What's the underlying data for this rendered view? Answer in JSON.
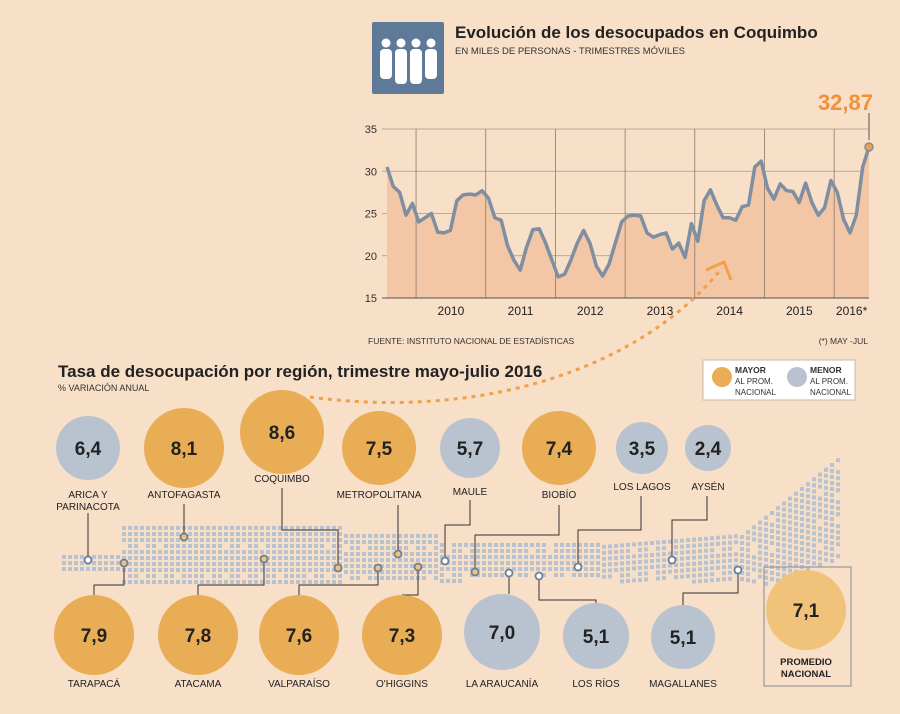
{
  "header": {
    "title": "Evolución de los desocupados en Coquimbo",
    "subtitle": "EN MILES DE PERSONAS - TRIMESTRES MÓVILES",
    "icon": "people-group-icon"
  },
  "colors": {
    "background": "#f7dfc8",
    "mayor": "#e8ad55",
    "menor": "#b9c3cf",
    "line": "#7f8ea0",
    "area": "#f3c7a6",
    "highlight": "#f0923a",
    "promedio": "#f1c27a"
  },
  "chart_data": {
    "type": "area",
    "title": "Evolución de los desocupados en Coquimbo",
    "subtitle": "EN MILES DE PERSONAS - TRIMESTRES MÓVILES",
    "ylim": [
      15,
      35
    ],
    "yticks": [
      "35",
      "30",
      "25",
      "20",
      "15"
    ],
    "year_labels": [
      "2010",
      "2011",
      "2012",
      "2013",
      "2014",
      "2015",
      "2016*"
    ],
    "year_start": 2009.583,
    "year_end": 2016.5,
    "last_value_label": "32,87",
    "source": "FUENTE: INSTITUTO NACIONAL DE ESTADÍSTICAS",
    "note": "(*) MAY -JUL",
    "values": [
      30.5,
      28.2,
      27.5,
      24.8,
      26.2,
      24.0,
      24.5,
      25.0,
      22.8,
      22.7,
      23.0,
      26.5,
      27.2,
      27.3,
      27.2,
      27.7,
      26.8,
      24.5,
      24.2,
      21.2,
      19.5,
      18.3,
      21.0,
      23.1,
      23.2,
      21.5,
      19.5,
      17.5,
      17.8,
      19.5,
      21.5,
      23.0,
      21.5,
      18.8,
      17.6,
      19.0,
      21.5,
      24.0,
      24.7,
      24.8,
      24.7,
      22.7,
      22.2,
      22.5,
      22.7,
      20.8,
      21.5,
      19.8,
      23.8,
      21.7,
      26.5,
      27.8,
      26.0,
      24.5,
      24.5,
      24.2,
      25.8,
      26.0,
      30.5,
      31.2,
      28.0,
      26.7,
      28.5,
      27.7,
      27.6,
      26.3,
      28.6,
      26.3,
      24.8,
      25.7,
      28.9,
      27.5,
      24.3,
      22.7,
      24.8,
      30.5,
      32.87
    ]
  },
  "section": {
    "title": "Tasa de desocupación por región, trimestre mayo-julio 2016",
    "subtitle": "% VARIACIÓN ANUAL"
  },
  "legend": {
    "mayor_title": "MAYOR",
    "mayor_sub1": "AL PROM.",
    "mayor_sub2": "NACIONAL",
    "menor_title": "MENOR",
    "menor_sub1": "AL PROM.",
    "menor_sub2": "NACIONAL"
  },
  "regions_top": [
    {
      "name": "ARICA Y",
      "name2": "PARINACOTA",
      "value": "6,4",
      "status": "menor"
    },
    {
      "name": "ANTOFAGASTA",
      "name2": "",
      "value": "8,1",
      "status": "mayor"
    },
    {
      "name": "COQUIMBO",
      "name2": "",
      "value": "8,6",
      "status": "mayor"
    },
    {
      "name": "METROPOLITANA",
      "name2": "",
      "value": "7,5",
      "status": "mayor"
    },
    {
      "name": "MAULE",
      "name2": "",
      "value": "5,7",
      "status": "menor"
    },
    {
      "name": "BIOBÍO",
      "name2": "",
      "value": "7,4",
      "status": "mayor"
    },
    {
      "name": "LOS LAGOS",
      "name2": "",
      "value": "3,5",
      "status": "menor"
    },
    {
      "name": "AYSÉN",
      "name2": "",
      "value": "2,4",
      "status": "menor"
    }
  ],
  "regions_bottom": [
    {
      "name": "TARAPACÁ",
      "value": "7,9",
      "status": "mayor"
    },
    {
      "name": "ATACAMA",
      "value": "7,8",
      "status": "mayor"
    },
    {
      "name": "VALPARAÍSO",
      "value": "7,6",
      "status": "mayor"
    },
    {
      "name": "O'HIGGINS",
      "value": "7,3",
      "status": "mayor"
    },
    {
      "name": "LA ARAUCANÍA",
      "value": "7,0",
      "status": "menor"
    },
    {
      "name": "LOS RÍOS",
      "value": "5,1",
      "status": "menor"
    },
    {
      "name": "MAGALLANES",
      "value": "5,1",
      "status": "menor"
    }
  ],
  "promedio": {
    "value": "7,1",
    "label1": "PROMEDIO",
    "label2": "NACIONAL"
  }
}
